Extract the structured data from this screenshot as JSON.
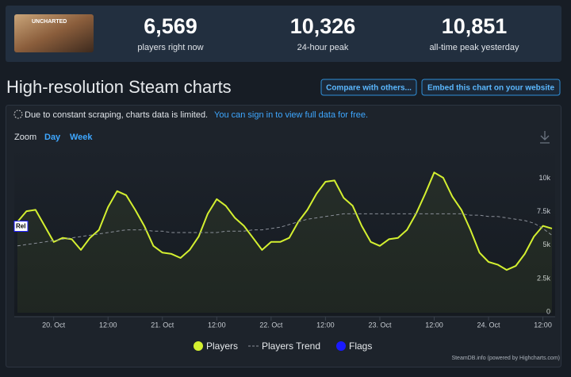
{
  "header": {
    "thumbnail_text": "UNCHARTED",
    "stats": [
      {
        "value": "6,569",
        "label": "players right now"
      },
      {
        "value": "10,326",
        "label": "24-hour peak"
      },
      {
        "value": "10,851",
        "label": "all-time peak yesterday"
      }
    ]
  },
  "title": "High-resolution Steam charts",
  "buttons": [
    "Compare with others...",
    "Embed this chart on your website"
  ],
  "notice": {
    "text": "Due to constant scraping, charts data is limited.",
    "link": "You can sign in to view full data for free."
  },
  "zoom": {
    "label": "Zoom",
    "options": [
      "Day",
      "Week"
    ]
  },
  "credits": "SteamDB.info (powered by Highcharts.com)",
  "chart_data": {
    "type": "line",
    "categories": [
      null,
      null,
      null,
      null,
      "20. Oct",
      null,
      null,
      null,
      null,
      null,
      "12:00",
      null,
      null,
      null,
      null,
      null,
      "21. Oct",
      null,
      null,
      null,
      null,
      null,
      "12:00",
      null,
      null,
      null,
      null,
      null,
      "22. Oct",
      null,
      null,
      null,
      null,
      null,
      "12:00",
      null,
      null,
      null,
      null,
      null,
      "23. Oct",
      null,
      null,
      null,
      null,
      null,
      "12:00",
      null,
      null,
      null,
      null,
      null,
      "24. Oct",
      null,
      null,
      null,
      null,
      null,
      "12:00",
      null
    ],
    "series": [
      {
        "name": "Players",
        "color": "#d4f030",
        "values": [
          6800,
          7600,
          7700,
          6500,
          5300,
          5600,
          5500,
          4700,
          5600,
          6200,
          7900,
          9100,
          8800,
          7700,
          6500,
          5000,
          4500,
          4400,
          4100,
          4700,
          5700,
          7400,
          8500,
          8000,
          7100,
          6500,
          5600,
          4700,
          5300,
          5300,
          5600,
          6800,
          7700,
          8900,
          9800,
          9900,
          8600,
          8000,
          6500,
          5300,
          5000,
          5500,
          5600,
          6200,
          7400,
          8900,
          10500,
          10100,
          8700,
          7700,
          6200,
          4500,
          3800,
          3600,
          3200,
          3500,
          4400,
          5700,
          6500,
          6300
        ]
      },
      {
        "name": "Players Trend",
        "color": "#8a8f98",
        "dashed": true,
        "values": [
          5000,
          5100,
          5200,
          5300,
          5400,
          5500,
          5600,
          5700,
          5800,
          5900,
          6000,
          6100,
          6200,
          6200,
          6200,
          6100,
          6100,
          6000,
          6000,
          6000,
          6000,
          6000,
          6000,
          6100,
          6100,
          6100,
          6200,
          6200,
          6300,
          6400,
          6600,
          6800,
          7000,
          7100,
          7200,
          7300,
          7400,
          7400,
          7400,
          7400,
          7400,
          7400,
          7400,
          7400,
          7400,
          7400,
          7400,
          7400,
          7400,
          7400,
          7300,
          7300,
          7200,
          7200,
          7100,
          7000,
          6900,
          6700,
          6300,
          5800
        ]
      }
    ],
    "flags": {
      "name": "Flags",
      "color": "#1a1aff",
      "labels": [
        "Rel"
      ]
    },
    "ylim": [
      0,
      12000
    ],
    "yticks": [
      0,
      {
        "value": 2500,
        "label": "2.5k"
      },
      {
        "value": 5000,
        "label": "5k"
      },
      {
        "value": 7500,
        "label": "7.5k"
      },
      {
        "value": 10000,
        "label": "10k"
      }
    ]
  }
}
